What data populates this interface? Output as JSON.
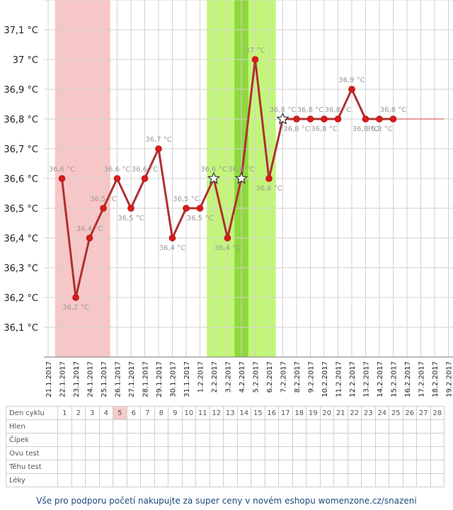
{
  "chart_data": {
    "type": "line",
    "yticks": [
      "37,1 °C",
      "37 °C",
      "36,9 °C",
      "36,8 °C",
      "36,7 °C",
      "36,6 °C",
      "36,5 °C",
      "36,4 °C",
      "36,3 °C",
      "36,2 °C",
      "36,1 °C"
    ],
    "ylim": [
      36.0,
      37.2
    ],
    "dates": [
      "21.1.2017",
      "22.1.2017",
      "23.1.2017",
      "24.1.2017",
      "25.1.2017",
      "26.1.2017",
      "27.1.2017",
      "28.1.2017",
      "29.1.2017",
      "30.1.2017",
      "31.1.2017",
      "1.2.2017",
      "2.2.2017",
      "3.2.2017",
      "4.2.2017",
      "5.2.2017",
      "6.2.2017",
      "7.2.2017",
      "8.2.2017",
      "9.2.2017",
      "10.2.2017",
      "11.2.2017",
      "12.2.2017",
      "13.2.2017",
      "14.2.2017",
      "15.2.2017",
      "16.2.2017",
      "17.2.2017",
      "18.2.2017",
      "19.2.2017"
    ],
    "series": [
      {
        "color": "#b03030",
        "points": [
          {
            "date": "22.1.2017",
            "y": 36.6,
            "label": "36,6 °C"
          },
          {
            "date": "23.1.2017",
            "y": 36.2,
            "label": "36,2 °C"
          },
          {
            "date": "24.1.2017",
            "y": 36.4,
            "label": "36,4 °C"
          },
          {
            "date": "25.1.2017",
            "y": 36.5,
            "label": "36,5 °C"
          },
          {
            "date": "26.1.2017",
            "y": 36.6,
            "label": "36,6 °C"
          },
          {
            "date": "27.1.2017",
            "y": 36.5,
            "label": "36,5 °C"
          },
          {
            "date": "28.1.2017",
            "y": 36.6,
            "label": "36,6 °C"
          },
          {
            "date": "29.1.2017",
            "y": 36.7,
            "label": "36,7 °C"
          },
          {
            "date": "30.1.2017",
            "y": 36.4,
            "label": "36,4 °C"
          },
          {
            "date": "31.1.2017",
            "y": 36.5,
            "label": "36,5 °C"
          },
          {
            "date": "1.2.2017",
            "y": 36.5,
            "label": "36,5 °C"
          },
          {
            "date": "2.2.2017",
            "y": 36.6,
            "label": "36,6 °C",
            "star": true
          },
          {
            "date": "3.2.2017",
            "y": 36.4,
            "label": "36,4 °C"
          },
          {
            "date": "4.2.2017",
            "y": 36.6,
            "label": "36,6 °C",
            "star": true
          },
          {
            "date": "5.2.2017",
            "y": 37.0,
            "label": "37 °C"
          },
          {
            "date": "6.2.2017",
            "y": 36.6,
            "label": "36,6 °C"
          },
          {
            "date": "7.2.2017",
            "y": 36.8,
            "label": "36,8 °C",
            "star": true
          },
          {
            "date": "8.2.2017",
            "y": 36.8,
            "label": "36,8 °C"
          },
          {
            "date": "9.2.2017",
            "y": 36.8,
            "label": "36,8 °C"
          },
          {
            "date": "10.2.2017",
            "y": 36.8,
            "label": "36,8 °C"
          },
          {
            "date": "11.2.2017",
            "y": 36.8,
            "label": "36,8 °C"
          },
          {
            "date": "12.2.2017",
            "y": 36.9,
            "label": "36,9 °C"
          },
          {
            "date": "13.2.2017",
            "y": 36.8,
            "label": "36,8 °C"
          },
          {
            "date": "14.2.2017",
            "y": 36.8,
            "label": "36,8 °C"
          },
          {
            "date": "15.2.2017",
            "y": 36.8,
            "label": "36,8 °C"
          }
        ]
      }
    ],
    "coverline": {
      "y": 36.8,
      "from": "15.2.2017",
      "to": "19.2.2017",
      "color": "#d04040"
    },
    "bands": [
      {
        "from": "22.1.2017",
        "to": "25.1.2017",
        "color": "#f8c6c6",
        "meaning": "menstruation"
      },
      {
        "from": "2.2.2017",
        "to": "6.2.2017",
        "color": "#c3f57a",
        "meaning": "fertile window"
      },
      {
        "from": "4.2.2017",
        "to": "4.2.2017",
        "color": "#8ed83d",
        "meaning": "peak day"
      }
    ],
    "grid": true
  },
  "table": {
    "rows": [
      "Den cyklu",
      "Hlen",
      "Čípek",
      "Ovu test",
      "Těhu test",
      "Léky"
    ],
    "days": [
      "1",
      "2",
      "3",
      "4",
      "5",
      "6",
      "7",
      "8",
      "9",
      "10",
      "11",
      "12",
      "13",
      "14",
      "15",
      "16",
      "17",
      "18",
      "19",
      "20",
      "21",
      "22",
      "23",
      "24",
      "25",
      "26",
      "27",
      "28"
    ],
    "highlight_day": "5",
    "highlight_color": "#f7caca"
  },
  "footer": "Vše pro podporu početí nakupujte za super ceny v novém eshopu womenzone.cz/snazeni"
}
